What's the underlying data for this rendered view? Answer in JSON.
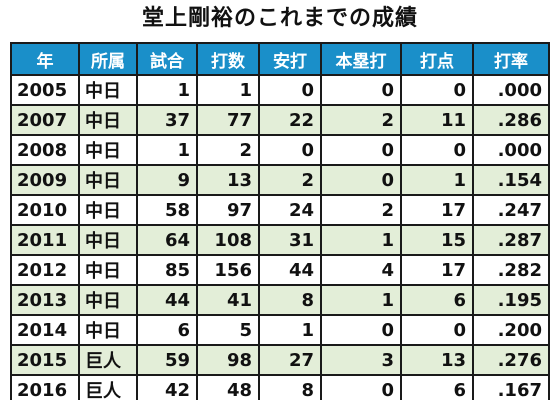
{
  "title": "堂上剛裕のこれまでの成績",
  "colors": {
    "header_bg": "#1a8fc9",
    "header_text": "#ffffff",
    "stripe_bg": "#e3eed8",
    "border": "#1a1a1a"
  },
  "table": {
    "headers": [
      "年",
      "所属",
      "試合",
      "打数",
      "安打",
      "本塁打",
      "打点",
      "打率"
    ],
    "rows": [
      [
        "2005",
        "中日",
        "1",
        "1",
        "0",
        "0",
        "0",
        ".000"
      ],
      [
        "2007",
        "中日",
        "37",
        "77",
        "22",
        "2",
        "11",
        ".286"
      ],
      [
        "2008",
        "中日",
        "1",
        "2",
        "0",
        "0",
        "0",
        ".000"
      ],
      [
        "2009",
        "中日",
        "9",
        "13",
        "2",
        "0",
        "1",
        ".154"
      ],
      [
        "2010",
        "中日",
        "58",
        "97",
        "24",
        "2",
        "17",
        ".247"
      ],
      [
        "2011",
        "中日",
        "64",
        "108",
        "31",
        "1",
        "15",
        ".287"
      ],
      [
        "2012",
        "中日",
        "85",
        "156",
        "44",
        "4",
        "17",
        ".282"
      ],
      [
        "2013",
        "中日",
        "44",
        "41",
        "8",
        "1",
        "6",
        ".195"
      ],
      [
        "2014",
        "中日",
        "6",
        "5",
        "1",
        "0",
        "0",
        ".200"
      ],
      [
        "2015",
        "巨人",
        "59",
        "98",
        "27",
        "3",
        "13",
        ".276"
      ],
      [
        "2016",
        "巨人",
        "42",
        "48",
        "8",
        "0",
        "6",
        ".167"
      ]
    ]
  }
}
